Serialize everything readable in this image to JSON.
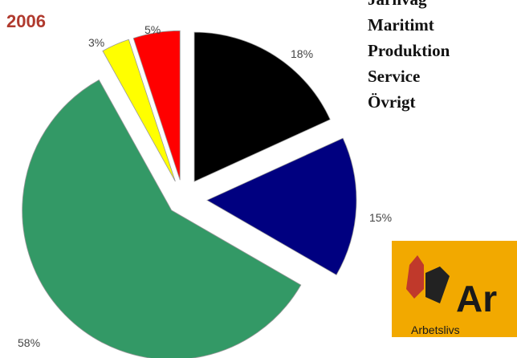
{
  "chart_data": {
    "type": "pie",
    "title": "2006",
    "slices": [
      {
        "label": "18%",
        "value": 18,
        "color": "#000000",
        "legend": "Järnväg"
      },
      {
        "label": "15%",
        "value": 15,
        "color": "#000080",
        "legend": "Maritimt"
      },
      {
        "label": "58%",
        "value": 58,
        "color": "#339966",
        "legend": "Produktion"
      },
      {
        "label": "3%",
        "value": 3,
        "color": "#ffff00",
        "legend": "Service"
      },
      {
        "label": "5%",
        "value": 5,
        "color": "#ff0000",
        "legend": "Övrigt"
      }
    ],
    "legend_labels": [
      "Järnväg",
      "Maritimt",
      "Produktion",
      "Service",
      "Övrigt"
    ]
  },
  "colors": {
    "title": "#b03a2e",
    "logo_bg": "#f2a900",
    "logo_red": "#c0392b"
  },
  "logo": {
    "text": "Ar",
    "subtext": "Arbetslivs"
  }
}
